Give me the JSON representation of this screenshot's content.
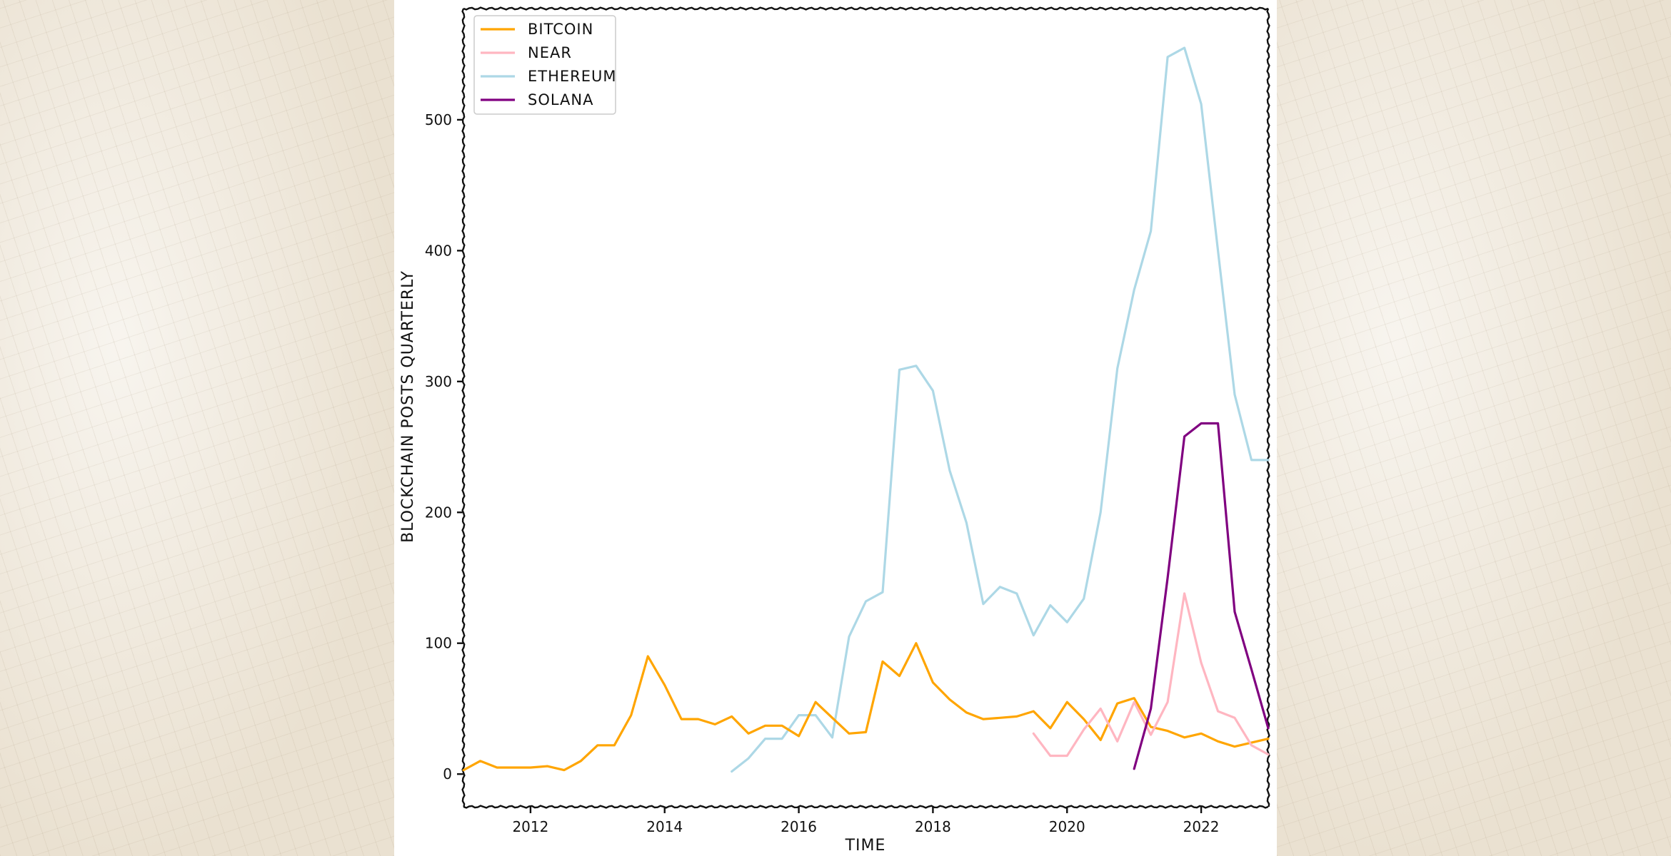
{
  "chart_data": {
    "type": "line",
    "xlabel": "TIME",
    "ylabel": "BLOCKCHAIN POSTS QUARTERLY",
    "xlim": [
      2011.0,
      2023.0
    ],
    "ylim": [
      -25,
      585
    ],
    "x_ticks": [
      2012,
      2014,
      2016,
      2018,
      2020,
      2022
    ],
    "x_tick_labels": [
      "2012",
      "2014",
      "2016",
      "2018",
      "2020",
      "2022"
    ],
    "y_ticks": [
      0,
      100,
      200,
      300,
      400,
      500
    ],
    "y_tick_labels": [
      "0",
      "100",
      "200",
      "300",
      "400",
      "500"
    ],
    "legend_position": "top-left",
    "series": [
      {
        "name": "BITCOIN",
        "color": "#ffa500",
        "x": [
          2011.0,
          2011.25,
          2011.5,
          2011.75,
          2012.0,
          2012.25,
          2012.5,
          2012.75,
          2013.0,
          2013.25,
          2013.5,
          2013.75,
          2014.0,
          2014.25,
          2014.5,
          2014.75,
          2015.0,
          2015.25,
          2015.5,
          2015.75,
          2016.0,
          2016.25,
          2016.5,
          2016.75,
          2017.0,
          2017.25,
          2017.5,
          2017.75,
          2018.0,
          2018.25,
          2018.5,
          2018.75,
          2019.0,
          2019.25,
          2019.5,
          2019.75,
          2020.0,
          2020.25,
          2020.5,
          2020.75,
          2021.0,
          2021.25,
          2021.5,
          2021.75,
          2022.0,
          2022.25,
          2022.5,
          2022.75,
          2023.0
        ],
        "values": [
          3,
          10,
          5,
          5,
          5,
          6,
          3,
          10,
          22,
          22,
          45,
          90,
          68,
          42,
          42,
          38,
          44,
          31,
          37,
          37,
          29,
          55,
          43,
          31,
          32,
          86,
          75,
          100,
          70,
          57,
          47,
          42,
          43,
          44,
          48,
          35,
          55,
          42,
          26,
          54,
          58,
          36,
          33,
          28,
          31,
          25,
          21,
          24,
          27
        ]
      },
      {
        "name": "NEAR",
        "color": "#ffb6c1",
        "x": [
          2019.5,
          2019.75,
          2020.0,
          2020.25,
          2020.5,
          2020.75,
          2021.0,
          2021.25,
          2021.5,
          2021.75,
          2022.0,
          2022.25,
          2022.5,
          2022.75,
          2023.0
        ],
        "values": [
          31,
          14,
          14,
          34,
          50,
          25,
          55,
          30,
          55,
          138,
          85,
          48,
          43,
          22,
          15
        ]
      },
      {
        "name": "ETHEREUM",
        "color": "#add8e6",
        "x": [
          2015.0,
          2015.25,
          2015.5,
          2015.75,
          2016.0,
          2016.25,
          2016.5,
          2016.75,
          2017.0,
          2017.25,
          2017.5,
          2017.75,
          2018.0,
          2018.25,
          2018.5,
          2018.75,
          2019.0,
          2019.25,
          2019.5,
          2019.75,
          2020.0,
          2020.25,
          2020.5,
          2020.75,
          2021.0,
          2021.25,
          2021.5,
          2021.75,
          2022.0,
          2022.25,
          2022.5,
          2022.75,
          2023.0
        ],
        "values": [
          2,
          12,
          27,
          27,
          45,
          45,
          28,
          105,
          132,
          139,
          309,
          312,
          293,
          232,
          192,
          130,
          143,
          138,
          106,
          129,
          116,
          134,
          200,
          310,
          370,
          415,
          548,
          555,
          512,
          400,
          290,
          240,
          240
        ]
      },
      {
        "name": "SOLANA",
        "color": "#800080",
        "x": [
          2021.0,
          2021.25,
          2021.5,
          2021.75,
          2022.0,
          2022.25,
          2022.5,
          2022.75,
          2023.0
        ],
        "values": [
          4,
          50,
          150,
          258,
          268,
          268,
          124,
          80,
          35
        ]
      }
    ]
  }
}
